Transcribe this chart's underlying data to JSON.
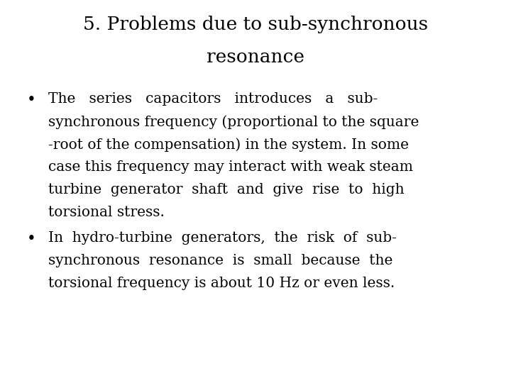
{
  "title_line1": "5. Problems due to sub-synchronous",
  "title_line2": "resonance",
  "bullet1_lines": [
    "The   series   capacitors   introduces   a   sub-",
    "synchronous frequency (proportional to the square",
    "-root of the compensation) in the system. In some",
    "case this frequency may interact with weak steam",
    "turbine  generator  shaft  and  give  rise  to  high",
    "torsional stress."
  ],
  "bullet2_lines": [
    "In  hydro-turbine  generators,  the  risk  of  sub-",
    "synchronous  resonance  is  small  because  the",
    "torsional frequency is about 10 Hz or even less."
  ],
  "background_color": "#ffffff",
  "text_color": "#000000",
  "title_fontsize": 19,
  "body_fontsize": 14.5,
  "font_family": "DejaVu Serif"
}
